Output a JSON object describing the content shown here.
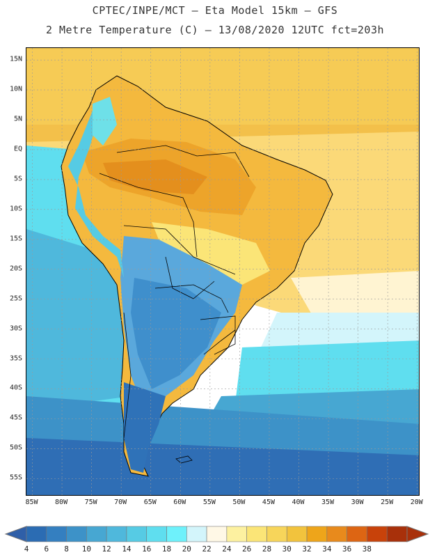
{
  "header": {
    "title_line1": "CPTEC/INPE/MCT –  Eta Model 15km – GFS",
    "title_line2": "2 Metre Temperature (C) – 13/08/2020 12UTC fct=203h"
  },
  "axes": {
    "lat_labels": [
      "15N",
      "10N",
      "5N",
      "EQ",
      "5S",
      "10S",
      "15S",
      "20S",
      "25S",
      "30S",
      "35S",
      "40S",
      "45S",
      "50S",
      "55S"
    ],
    "lon_labels": [
      "85W",
      "80W",
      "75W",
      "70W",
      "65W",
      "60W",
      "55W",
      "50W",
      "45W",
      "40W",
      "35W",
      "30W",
      "25W",
      "20W"
    ],
    "lat_range": [
      17,
      -58
    ],
    "lon_range": [
      -86,
      -19.5
    ],
    "grid": true
  },
  "colorbar": {
    "labels": [
      "4",
      "6",
      "8",
      "10",
      "12",
      "14",
      "16",
      "18",
      "20",
      "22",
      "24",
      "26",
      "28",
      "30",
      "32",
      "34",
      "36",
      "38"
    ],
    "colors": [
      "#2b6cb3",
      "#347fc0",
      "#3d92c8",
      "#47a7d2",
      "#4fb8dc",
      "#56cbe4",
      "#5fdeef",
      "#6ef1fb",
      "#d3f5fb",
      "#fff8e6",
      "#fdf1a0",
      "#fbe577",
      "#f7d55a",
      "#f2c33d",
      "#eea51a",
      "#e88a1c",
      "#dd6513",
      "#c8420a",
      "#a8300a"
    ],
    "under_color": "#2f5fa8",
    "over_color": "#a8300a"
  },
  "map": {
    "ocean_north_color": "#f6cb55",
    "ocean_equatorial_color": "#f3bf45",
    "ocean_transition_color": "#fff4d2",
    "ocean_mid_color": "#5fdeef",
    "ocean_south_color": "#3d92c8",
    "ocean_far_south_color": "#2f6eb5",
    "amazon_color": "#eda42a",
    "amazon_hot_color": "#e48f1d",
    "andes_cold_color": "#56cbe4",
    "southern_cone_color": "#3f8fcc",
    "patagonia_color": "#2f72b8"
  }
}
